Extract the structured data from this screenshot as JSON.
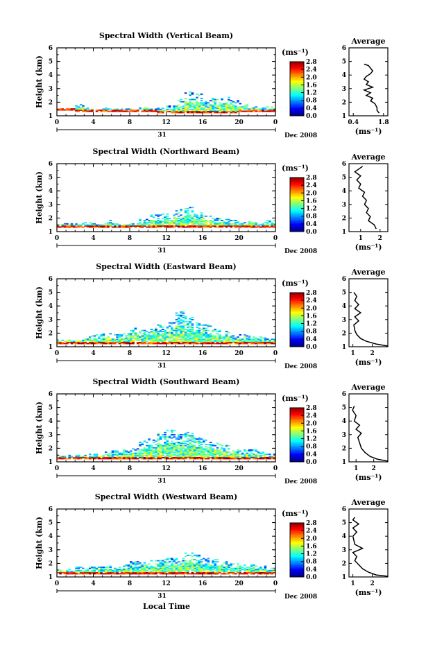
{
  "figure": {
    "xlabel": "Local Time",
    "date_label": "Dec 2008",
    "day_label": "31",
    "ylabel": "Height (km)",
    "colorbar_unit": "(ms⁻¹)",
    "avg_title": "Average",
    "avg_xlabel": "(ms⁻¹)"
  },
  "chart_data": [
    {
      "type": "heatmap",
      "title": "Spectral Width (Vertical Beam)",
      "xlabel": "Local Time",
      "ylabel": "Height (km)",
      "x_ticks": [
        "0",
        "4",
        "8",
        "12",
        "16",
        "20",
        "0"
      ],
      "xlim": [
        0,
        24
      ],
      "y_ticks": [
        "1",
        "2",
        "3",
        "4",
        "5",
        "6"
      ],
      "ylim": [
        1,
        6
      ],
      "colorbar": {
        "unit": "(ms⁻¹)",
        "ticks": [
          "0.0",
          "0.4",
          "0.8",
          "1.2",
          "1.6",
          "2.0",
          "2.4",
          "2.8"
        ],
        "range": [
          0.0,
          2.8
        ]
      },
      "profile": {
        "title": "Average",
        "xlabel": "(ms⁻¹)",
        "x_ticks": [
          "0.4",
          "1.8"
        ],
        "xlim": [
          0.2,
          2.0
        ],
        "points": [
          [
            1.6,
            1.2
          ],
          [
            1.5,
            1.4
          ],
          [
            1.5,
            1.6
          ],
          [
            1.4,
            1.9
          ],
          [
            1.2,
            2.1
          ],
          [
            1.3,
            2.3
          ],
          [
            1.0,
            2.5
          ],
          [
            1.2,
            2.7
          ],
          [
            0.9,
            2.9
          ],
          [
            1.3,
            3.1
          ],
          [
            1.0,
            3.3
          ],
          [
            1.1,
            3.5
          ],
          [
            0.9,
            3.7
          ],
          [
            1.0,
            3.9
          ],
          [
            1.2,
            4.1
          ],
          [
            1.3,
            4.3
          ],
          [
            1.2,
            4.5
          ],
          [
            1.1,
            4.7
          ],
          [
            0.9,
            4.8
          ]
        ]
      },
      "data_extent": [
        [
          1.4,
          1.5
        ],
        [
          1.4,
          1.5
        ],
        [
          1.3,
          1.8
        ],
        [
          1.3,
          1.6
        ],
        [
          1.3,
          1.5
        ],
        [
          1.3,
          1.6
        ],
        [
          1.3,
          1.5
        ],
        [
          1.3,
          1.5
        ],
        [
          1.3,
          1.5
        ],
        [
          1.3,
          1.7
        ],
        [
          1.3,
          1.5
        ],
        [
          1.2,
          1.6
        ],
        [
          1.2,
          1.7
        ],
        [
          1.2,
          2.2
        ],
        [
          1.2,
          2.8
        ],
        [
          1.2,
          2.6
        ],
        [
          1.2,
          2.1
        ],
        [
          1.2,
          2.3
        ],
        [
          1.2,
          2.4
        ],
        [
          1.2,
          2.2
        ],
        [
          1.3,
          1.9
        ],
        [
          1.3,
          1.7
        ],
        [
          1.3,
          1.6
        ],
        [
          1.3,
          1.7
        ]
      ]
    },
    {
      "type": "heatmap",
      "title": "Spectral Width (Northward Beam)",
      "xlabel": "Local Time",
      "ylabel": "Height (km)",
      "x_ticks": [
        "0",
        "4",
        "8",
        "12",
        "16",
        "20",
        "0"
      ],
      "xlim": [
        0,
        24
      ],
      "y_ticks": [
        "1",
        "2",
        "3",
        "4",
        "5",
        "6"
      ],
      "ylim": [
        1,
        6
      ],
      "colorbar": {
        "unit": "(ms⁻¹)",
        "ticks": [
          "0.0",
          "0.4",
          "0.8",
          "1.2",
          "1.6",
          "2.0",
          "2.4",
          "2.8"
        ],
        "range": [
          0.0,
          2.8
        ]
      },
      "profile": {
        "title": "Average",
        "xlabel": "(ms⁻¹)",
        "x_ticks": [
          "1",
          "2"
        ],
        "xlim": [
          0.4,
          2.4
        ],
        "points": [
          [
            1.8,
            1.2
          ],
          [
            1.7,
            1.5
          ],
          [
            1.4,
            1.8
          ],
          [
            1.5,
            2.1
          ],
          [
            1.3,
            2.4
          ],
          [
            1.4,
            2.7
          ],
          [
            1.2,
            3.0
          ],
          [
            1.3,
            3.3
          ],
          [
            1.1,
            3.6
          ],
          [
            1.2,
            3.9
          ],
          [
            0.9,
            4.2
          ],
          [
            1.0,
            4.5
          ],
          [
            0.8,
            4.8
          ],
          [
            1.0,
            5.1
          ],
          [
            0.7,
            5.4
          ],
          [
            0.9,
            5.6
          ],
          [
            1.1,
            5.8
          ]
        ]
      },
      "data_extent": [
        [
          1.3,
          1.6
        ],
        [
          1.3,
          1.6
        ],
        [
          1.3,
          1.7
        ],
        [
          1.3,
          1.7
        ],
        [
          1.3,
          1.6
        ],
        [
          1.3,
          1.8
        ],
        [
          1.3,
          1.6
        ],
        [
          1.3,
          1.6
        ],
        [
          1.3,
          1.7
        ],
        [
          1.3,
          1.9
        ],
        [
          1.3,
          2.2
        ],
        [
          1.3,
          2.3
        ],
        [
          1.3,
          2.3
        ],
        [
          1.3,
          2.6
        ],
        [
          1.3,
          2.8
        ],
        [
          1.3,
          2.4
        ],
        [
          1.3,
          2.3
        ],
        [
          1.3,
          2.0
        ],
        [
          1.3,
          1.9
        ],
        [
          1.3,
          1.8
        ],
        [
          1.3,
          1.7
        ],
        [
          1.3,
          1.8
        ],
        [
          1.3,
          1.7
        ],
        [
          1.3,
          1.8
        ]
      ]
    },
    {
      "type": "heatmap",
      "title": "Spectral Width (Eastward Beam)",
      "xlabel": "Local Time",
      "ylabel": "Height (km)",
      "x_ticks": [
        "0",
        "4",
        "8",
        "12",
        "16",
        "20",
        "0"
      ],
      "xlim": [
        0,
        24
      ],
      "y_ticks": [
        "1",
        "2",
        "3",
        "4",
        "5",
        "6"
      ],
      "ylim": [
        1,
        6
      ],
      "colorbar": {
        "unit": "(ms⁻¹)",
        "ticks": [
          "0.0",
          "0.4",
          "0.8",
          "1.2",
          "1.6",
          "2.0",
          "2.4",
          "2.8"
        ],
        "range": [
          0.0,
          2.8
        ]
      },
      "profile": {
        "title": "Average",
        "xlabel": "(ms⁻¹)",
        "x_ticks": [
          "1",
          "2"
        ],
        "xlim": [
          0.8,
          2.8
        ],
        "points": [
          [
            2.8,
            1.05
          ],
          [
            2.2,
            1.2
          ],
          [
            1.7,
            1.4
          ],
          [
            1.4,
            1.6
          ],
          [
            1.2,
            1.9
          ],
          [
            1.1,
            2.2
          ],
          [
            1.05,
            2.6
          ],
          [
            1.3,
            2.9
          ],
          [
            1.1,
            3.2
          ],
          [
            1.4,
            3.5
          ],
          [
            1.1,
            3.8
          ],
          [
            1.3,
            4.1
          ],
          [
            1.1,
            4.4
          ],
          [
            1.2,
            4.7
          ],
          [
            1.05,
            5.0
          ]
        ]
      },
      "data_extent": [
        [
          1.2,
          1.5
        ],
        [
          1.2,
          1.6
        ],
        [
          1.2,
          1.6
        ],
        [
          1.2,
          1.8
        ],
        [
          1.2,
          1.9
        ],
        [
          1.2,
          2.0
        ],
        [
          1.2,
          1.9
        ],
        [
          1.2,
          2.0
        ],
        [
          1.2,
          2.4
        ],
        [
          1.2,
          2.2
        ],
        [
          1.2,
          2.4
        ],
        [
          1.2,
          2.6
        ],
        [
          1.2,
          2.8
        ],
        [
          1.2,
          3.6
        ],
        [
          1.2,
          3.4
        ],
        [
          1.2,
          2.8
        ],
        [
          1.2,
          2.6
        ],
        [
          1.2,
          2.3
        ],
        [
          1.2,
          2.1
        ],
        [
          1.2,
          1.9
        ],
        [
          1.2,
          1.9
        ],
        [
          1.2,
          1.8
        ],
        [
          1.2,
          1.7
        ],
        [
          1.2,
          1.6
        ]
      ]
    },
    {
      "type": "heatmap",
      "title": "Spectral Width (Southward Beam)",
      "xlabel": "Local Time",
      "ylabel": "Height (km)",
      "x_ticks": [
        "0",
        "4",
        "8",
        "12",
        "16",
        "20",
        "0"
      ],
      "xlim": [
        0,
        24
      ],
      "y_ticks": [
        "1",
        "2",
        "3",
        "4",
        "5",
        "6"
      ],
      "ylim": [
        1,
        6
      ],
      "colorbar": {
        "unit": "(ms⁻¹)",
        "ticks": [
          "0.0",
          "0.4",
          "0.8",
          "1.2",
          "1.6",
          "2.0",
          "2.4",
          "2.8"
        ],
        "range": [
          0.0,
          2.8
        ]
      },
      "profile": {
        "title": "Average",
        "xlabel": "(ms⁻¹)",
        "x_ticks": [
          "1",
          "2"
        ],
        "xlim": [
          0.6,
          2.8
        ],
        "points": [
          [
            2.8,
            1.05
          ],
          [
            2.2,
            1.2
          ],
          [
            1.8,
            1.4
          ],
          [
            1.5,
            1.7
          ],
          [
            1.3,
            2.0
          ],
          [
            1.2,
            2.4
          ],
          [
            1.1,
            2.8
          ],
          [
            1.3,
            3.1
          ],
          [
            1.0,
            3.4
          ],
          [
            1.2,
            3.7
          ],
          [
            0.9,
            4.0
          ],
          [
            1.0,
            4.4
          ],
          [
            0.8,
            4.8
          ],
          [
            0.9,
            5.1
          ]
        ]
      },
      "data_extent": [
        [
          1.2,
          1.5
        ],
        [
          1.2,
          1.5
        ],
        [
          1.2,
          1.5
        ],
        [
          1.2,
          1.6
        ],
        [
          1.2,
          1.6
        ],
        [
          1.2,
          1.7
        ],
        [
          1.2,
          1.8
        ],
        [
          1.2,
          1.9
        ],
        [
          1.2,
          2.0
        ],
        [
          1.2,
          2.5
        ],
        [
          1.2,
          2.7
        ],
        [
          1.2,
          3.2
        ],
        [
          1.2,
          3.3
        ],
        [
          1.2,
          3.0
        ],
        [
          1.2,
          3.2
        ],
        [
          1.2,
          2.8
        ],
        [
          1.2,
          2.6
        ],
        [
          1.2,
          2.4
        ],
        [
          1.2,
          2.2
        ],
        [
          1.2,
          2.0
        ],
        [
          1.2,
          1.9
        ],
        [
          1.2,
          1.9
        ],
        [
          1.2,
          1.7
        ],
        [
          1.2,
          1.6
        ]
      ]
    },
    {
      "type": "heatmap",
      "title": "Spectral Width (Westward Beam)",
      "xlabel": "Local Time",
      "ylabel": "Height (km)",
      "x_ticks": [
        "0",
        "4",
        "8",
        "12",
        "16",
        "20",
        "0"
      ],
      "xlim": [
        0,
        24
      ],
      "y_ticks": [
        "1",
        "2",
        "3",
        "4",
        "5",
        "6"
      ],
      "ylim": [
        1,
        6
      ],
      "colorbar": {
        "unit": "(ms⁻¹)",
        "ticks": [
          "0.0",
          "0.4",
          "0.8",
          "1.2",
          "1.6",
          "2.0",
          "2.4",
          "2.8"
        ],
        "range": [
          0.0,
          2.8
        ]
      },
      "profile": {
        "title": "Average",
        "xlabel": "(ms⁻¹)",
        "x_ticks": [
          "1",
          "2"
        ],
        "xlim": [
          0.8,
          2.8
        ],
        "points": [
          [
            2.8,
            1.05
          ],
          [
            2.2,
            1.15
          ],
          [
            1.8,
            1.35
          ],
          [
            1.5,
            1.6
          ],
          [
            1.3,
            1.9
          ],
          [
            1.1,
            2.2
          ],
          [
            1.2,
            2.5
          ],
          [
            1.0,
            2.8
          ],
          [
            1.5,
            3.1
          ],
          [
            1.1,
            3.4
          ],
          [
            1.05,
            3.7
          ],
          [
            1.0,
            4.0
          ],
          [
            1.2,
            4.3
          ],
          [
            1.0,
            4.6
          ],
          [
            1.3,
            4.9
          ],
          [
            1.0,
            5.2
          ],
          [
            1.1,
            5.4
          ]
        ]
      },
      "data_extent": [
        [
          1.2,
          1.6
        ],
        [
          1.2,
          1.6
        ],
        [
          1.2,
          1.7
        ],
        [
          1.2,
          1.7
        ],
        [
          1.2,
          1.8
        ],
        [
          1.2,
          1.8
        ],
        [
          1.2,
          1.8
        ],
        [
          1.2,
          1.9
        ],
        [
          1.2,
          2.1
        ],
        [
          1.2,
          2.1
        ],
        [
          1.2,
          2.2
        ],
        [
          1.2,
          2.3
        ],
        [
          1.2,
          2.4
        ],
        [
          1.2,
          2.4
        ],
        [
          1.2,
          2.8
        ],
        [
          1.2,
          2.6
        ],
        [
          1.2,
          2.4
        ],
        [
          1.2,
          2.3
        ],
        [
          1.2,
          2.1
        ],
        [
          1.2,
          2.0
        ],
        [
          1.2,
          1.9
        ],
        [
          1.2,
          1.9
        ],
        [
          1.2,
          1.8
        ],
        [
          1.2,
          1.7
        ]
      ]
    }
  ]
}
